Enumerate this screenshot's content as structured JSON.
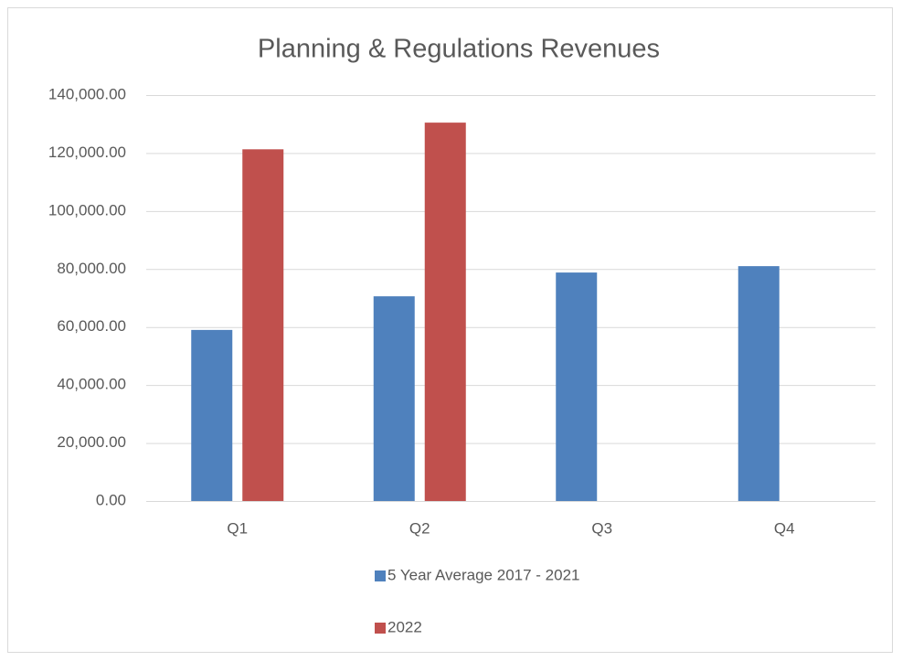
{
  "chart_data": {
    "type": "bar",
    "title": "Planning & Regulations Revenues",
    "categories": [
      "Q1",
      "Q2",
      "Q3",
      "Q4"
    ],
    "series": [
      {
        "name": "5 Year Average 2017 - 2021",
        "color": "#4f81bd",
        "values": [
          59000,
          70600,
          78800,
          81000
        ]
      },
      {
        "name": "2022",
        "color": "#c0504d",
        "values": [
          121300,
          130500,
          null,
          null
        ]
      }
    ],
    "ylim": [
      0,
      140000
    ],
    "yticks": [
      {
        "value": 0,
        "label": "0.00"
      },
      {
        "value": 20000,
        "label": "20,000.00"
      },
      {
        "value": 40000,
        "label": "40,000.00"
      },
      {
        "value": 60000,
        "label": "60,000.00"
      },
      {
        "value": 80000,
        "label": "80,000.00"
      },
      {
        "value": 100000,
        "label": "100,000.00"
      },
      {
        "value": 120000,
        "label": "120,000.00"
      },
      {
        "value": 140000,
        "label": "140,000.00"
      }
    ],
    "grid": true,
    "legend": "bottom"
  }
}
